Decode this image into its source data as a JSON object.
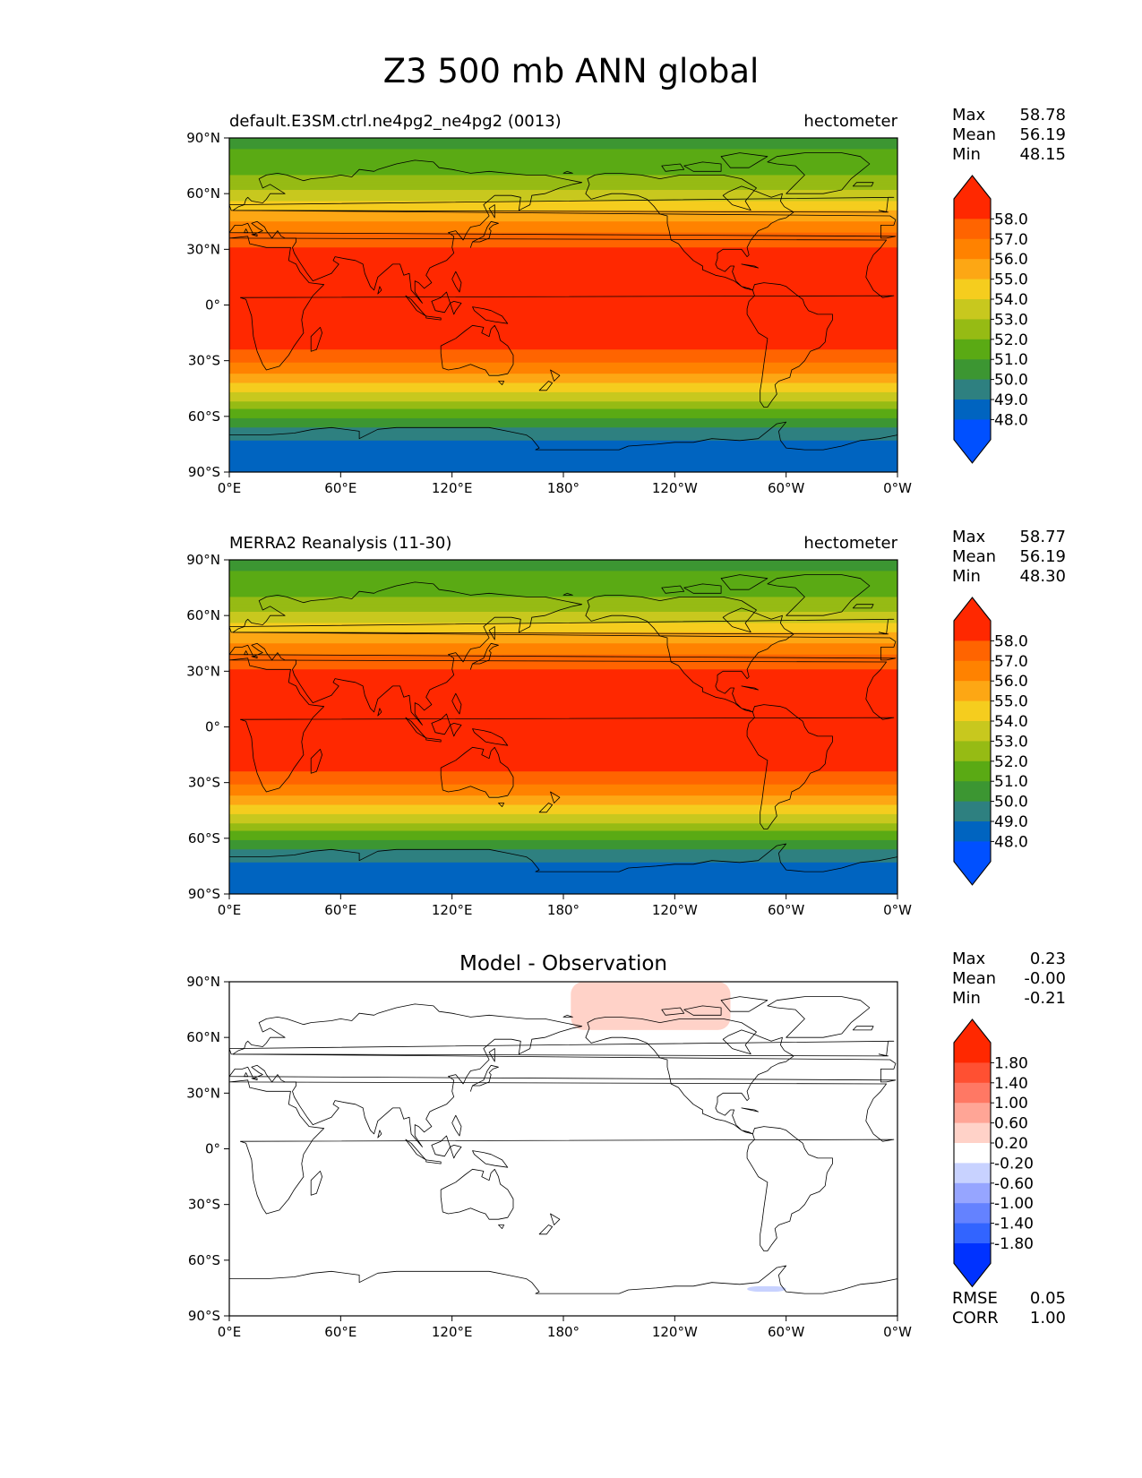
{
  "figure_title": "Z3 500 mb ANN global",
  "colors": {
    "field_levels": [
      "#0050ff",
      "#0064c0",
      "#2e8080",
      "#3c9632",
      "#5aaa14",
      "#96bb14",
      "#c8c81e",
      "#f5cd1e",
      "#fda714",
      "#ff8200",
      "#ff6400",
      "#ff2800"
    ],
    "diff_levels": [
      "#0032ff",
      "#3264ff",
      "#6482ff",
      "#96a5ff",
      "#c8d2ff",
      "#ffffff",
      "#ffd2c8",
      "#ffa596",
      "#ff7864",
      "#ff5032",
      "#ff2800"
    ],
    "continent_outline": "#000000"
  },
  "chart_data": [
    {
      "type": "heatmap",
      "panel": "test",
      "title_left": "default.E3SM.ctrl.ne4pg2_ne4pg2 (0013)",
      "title_right": "hectometer",
      "stats": [
        {
          "label": "Max",
          "value": "58.78"
        },
        {
          "label": "Mean",
          "value": "56.19"
        },
        {
          "label": "Min",
          "value": "48.15"
        }
      ],
      "x_ticks": [
        "0°E",
        "60°E",
        "120°E",
        "180°",
        "120°W",
        "60°W",
        "0°W"
      ],
      "y_ticks": [
        "90°N",
        "60°N",
        "30°N",
        "0°",
        "30°S",
        "60°S",
        "90°S"
      ],
      "xlim": [
        0,
        360
      ],
      "ylim": [
        -90,
        90
      ],
      "colorbar_levels": [
        "58.0",
        "57.0",
        "56.0",
        "55.0",
        "54.0",
        "53.0",
        "52.0",
        "51.0",
        "50.0",
        "49.0",
        "48.0"
      ],
      "colorbar_extend": "both",
      "zonal_profile": {
        "lat": [
          90,
          80,
          72,
          66,
          60,
          55,
          50,
          45,
          40,
          35,
          30,
          20,
          0,
          -20,
          -25,
          -30,
          -35,
          -40,
          -45,
          -50,
          -55,
          -60,
          -63,
          -66,
          -70,
          -75,
          -90
        ],
        "value": [
          50.7,
          51.2,
          51.8,
          52.4,
          53.2,
          54.2,
          55.1,
          56.0,
          56.9,
          57.6,
          58.1,
          58.5,
          58.7,
          58.4,
          57.9,
          57.2,
          56.3,
          55.4,
          54.4,
          53.4,
          52.3,
          51.2,
          50.5,
          49.9,
          49.2,
          48.8,
          48.8
        ]
      }
    },
    {
      "type": "heatmap",
      "panel": "reference",
      "title_left": "MERRA2 Reanalysis (11-30)",
      "title_right": "hectometer",
      "stats": [
        {
          "label": "Max",
          "value": "58.77"
        },
        {
          "label": "Mean",
          "value": "56.19"
        },
        {
          "label": "Min",
          "value": "48.30"
        }
      ],
      "x_ticks": [
        "0°E",
        "60°E",
        "120°E",
        "180°",
        "120°W",
        "60°W",
        "0°W"
      ],
      "y_ticks": [
        "90°N",
        "60°N",
        "30°N",
        "0°",
        "30°S",
        "60°S",
        "90°S"
      ],
      "xlim": [
        0,
        360
      ],
      "ylim": [
        -90,
        90
      ],
      "colorbar_levels": [
        "58.0",
        "57.0",
        "56.0",
        "55.0",
        "54.0",
        "53.0",
        "52.0",
        "51.0",
        "50.0",
        "49.0",
        "48.0"
      ],
      "colorbar_extend": "both",
      "zonal_profile": {
        "lat": [
          90,
          80,
          72,
          66,
          60,
          55,
          50,
          45,
          40,
          35,
          30,
          20,
          0,
          -20,
          -25,
          -30,
          -35,
          -40,
          -45,
          -50,
          -55,
          -60,
          -63,
          -66,
          -70,
          -75,
          -90
        ],
        "value": [
          50.7,
          51.2,
          51.8,
          52.4,
          53.2,
          54.2,
          55.1,
          56.0,
          56.9,
          57.6,
          58.1,
          58.5,
          58.7,
          58.4,
          57.9,
          57.2,
          56.3,
          55.4,
          54.4,
          53.4,
          52.3,
          51.2,
          50.5,
          49.9,
          49.2,
          48.8,
          48.8
        ]
      }
    },
    {
      "type": "heatmap",
      "panel": "difference",
      "title_center": "Model - Observation",
      "stats": [
        {
          "label": "Max",
          "value": "0.23"
        },
        {
          "label": "Mean",
          "value": "-0.00"
        },
        {
          "label": "Min",
          "value": "-0.21"
        }
      ],
      "metrics": [
        {
          "label": "RMSE",
          "value": "0.05"
        },
        {
          "label": "CORR",
          "value": "1.00"
        }
      ],
      "x_ticks": [
        "0°E",
        "60°E",
        "120°E",
        "180°",
        "120°W",
        "60°W",
        "0°W"
      ],
      "y_ticks": [
        "90°N",
        "60°N",
        "30°N",
        "0°",
        "30°S",
        "60°S",
        "90°S"
      ],
      "xlim": [
        0,
        360
      ],
      "ylim": [
        -90,
        90
      ],
      "colorbar_levels": [
        "1.80",
        "1.40",
        "1.00",
        "0.60",
        "0.20",
        "-0.20",
        "-0.60",
        "-1.00",
        "-1.40",
        "-1.80"
      ],
      "colorbar_extend": "both",
      "anomaly_regions": [
        {
          "sign": "positive",
          "level": "0.20 to 0.60",
          "lon": [
            184,
            270
          ],
          "lat": [
            64,
            90
          ]
        },
        {
          "sign": "negative",
          "level": "-0.60 to -0.20",
          "lon": [
            279,
            300
          ],
          "lat": [
            -77,
            -74
          ]
        }
      ]
    }
  ]
}
